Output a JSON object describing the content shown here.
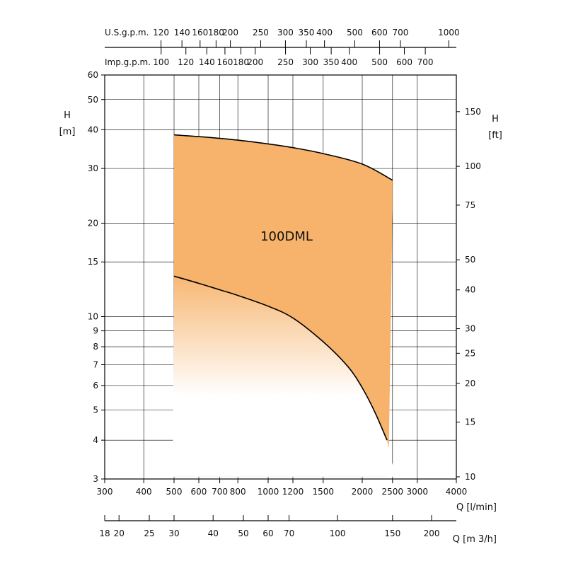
{
  "chart_data": {
    "type": "area",
    "label": "100DML",
    "x_axis": {
      "scale": "log",
      "unit_label": "Q [l/min]",
      "range": [
        300,
        4000
      ],
      "ticks": [
        300,
        400,
        500,
        600,
        700,
        800,
        1000,
        1200,
        1500,
        2000,
        2500,
        3000,
        4000
      ]
    },
    "y_axis": {
      "scale": "log",
      "label_lines": [
        "H",
        "[m]"
      ],
      "range": [
        3,
        60
      ],
      "ticks": [
        3,
        4,
        5,
        6,
        7,
        8,
        9,
        10,
        15,
        20,
        30,
        40,
        50,
        60
      ]
    },
    "y2_axis": {
      "scale": "log",
      "label_lines": [
        "H",
        "[ft]"
      ],
      "ticks": [
        10,
        15,
        20,
        25,
        30,
        40,
        50,
        75,
        100,
        150
      ]
    },
    "usgpm_axis": {
      "label": "U.S.g.p.m.",
      "ticks": [
        120,
        140,
        160,
        180,
        200,
        250,
        300,
        350,
        400,
        500,
        600,
        700,
        1000
      ]
    },
    "impgpm_axis": {
      "label": "Imp.g.p.m.",
      "ticks": [
        100,
        120,
        140,
        160,
        180,
        200,
        250,
        300,
        350,
        400,
        500,
        600,
        700
      ]
    },
    "m3h_axis": {
      "unit_label": "Q [m 3/h]",
      "ticks": [
        18,
        20,
        25,
        30,
        40,
        50,
        60,
        70,
        100,
        150,
        200
      ]
    },
    "upper_curve": {
      "x": [
        500,
        600,
        700,
        800,
        1000,
        1200,
        1500,
        2000,
        2500
      ],
      "y": [
        38.5,
        38.0,
        37.5,
        37.0,
        36.0,
        35.0,
        33.5,
        31.0,
        27.5
      ]
    },
    "lower_curve": {
      "x": [
        500,
        600,
        700,
        800,
        1000,
        1200,
        1500,
        1800,
        2000,
        2200,
        2400
      ],
      "y": [
        13.5,
        12.8,
        12.2,
        11.7,
        10.8,
        9.9,
        8.3,
        6.9,
        5.9,
        4.9,
        4.0
      ]
    },
    "fill_color": "#f7b36b",
    "curve_color": "#000000"
  }
}
